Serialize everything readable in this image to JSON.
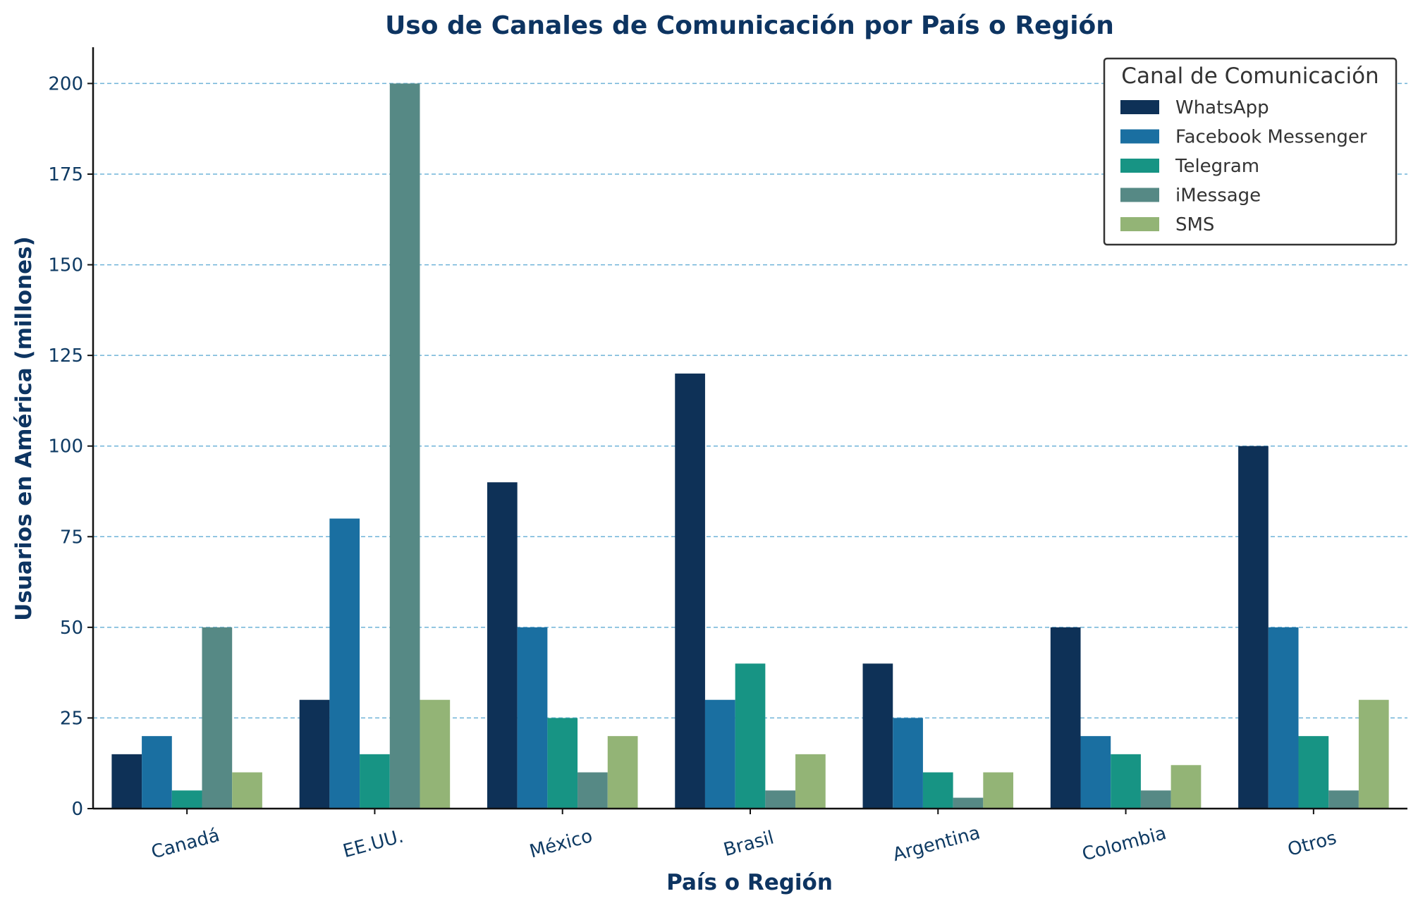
{
  "chart_data": {
    "type": "bar",
    "title": "Uso de Canales de Comunicación por País o Región",
    "xlabel": "País o Región",
    "ylabel": "Usuarios en América (millones)",
    "ylim": [
      0,
      210
    ],
    "yticks": [
      0,
      25,
      50,
      75,
      100,
      125,
      150,
      175,
      200
    ],
    "grid": "y, dashed",
    "legend_title": "Canal de Comunicación",
    "legend_position": "top-right",
    "categories": [
      "Canadá",
      "EE.UU.",
      "México",
      "Brasil",
      "Argentina",
      "Colombia",
      "Otros"
    ],
    "series": [
      {
        "name": "WhatsApp",
        "color": "#0e3157",
        "values": [
          15,
          30,
          90,
          120,
          40,
          50,
          100
        ]
      },
      {
        "name": "Facebook Messenger",
        "color": "#1a6fa1",
        "values": [
          20,
          80,
          50,
          30,
          25,
          20,
          50
        ]
      },
      {
        "name": "Telegram",
        "color": "#179484",
        "values": [
          5,
          15,
          25,
          40,
          10,
          15,
          20
        ]
      },
      {
        "name": "iMessage",
        "color": "#568985",
        "values": [
          50,
          200,
          10,
          5,
          3,
          5,
          5
        ]
      },
      {
        "name": "SMS",
        "color": "#93b476",
        "values": [
          10,
          30,
          20,
          15,
          10,
          12,
          30
        ]
      }
    ]
  }
}
